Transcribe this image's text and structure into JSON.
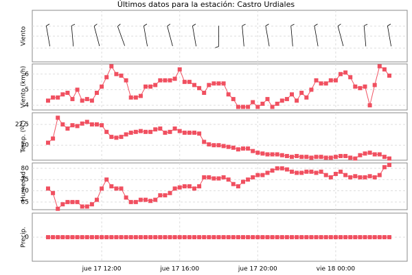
{
  "chart_data": {
    "type": "multi-panel",
    "title": "Últimos datos para la estación: Castro Urdiales",
    "categories": [
      null,
      null,
      null,
      null,
      null,
      null,
      null,
      null,
      null,
      null,
      null,
      "jue 17 12:00",
      null,
      null,
      null,
      null,
      null,
      null,
      null,
      null,
      null,
      null,
      null,
      null,
      null,
      null,
      null,
      "jue 17 16:00",
      null,
      null,
      null,
      null,
      null,
      null,
      null,
      null,
      null,
      null,
      null,
      null,
      null,
      null,
      null,
      "jue 17 20:00",
      null,
      null,
      null,
      null,
      null,
      null,
      null,
      null,
      null,
      null,
      null,
      null,
      null,
      null,
      null,
      "vie 18 00:00",
      null,
      null,
      null,
      null,
      null,
      null,
      null,
      null,
      null,
      null,
      null
    ],
    "grid": true,
    "panels": [
      {
        "type": "barb",
        "ylabel": "Viento",
        "color": "#000000",
        "values": [
          350,
          null,
          null,
          null,
          null,
          355,
          null,
          null,
          null,
          null,
          345,
          null,
          null,
          null,
          null,
          340,
          null,
          null,
          null,
          null,
          350,
          null,
          null,
          null,
          null,
          345,
          null,
          null,
          null,
          null,
          350,
          null,
          null,
          null,
          null,
          180,
          null,
          null,
          null,
          null,
          355,
          null,
          null,
          null,
          null,
          350,
          null,
          null,
          null,
          null,
          355,
          null,
          null,
          null,
          null,
          350,
          null,
          null,
          null,
          null,
          345,
          null,
          null,
          null,
          null,
          355,
          null,
          null,
          null,
          null,
          350
        ]
      },
      {
        "type": "line",
        "ylabel": "Viento (km/h)",
        "color": "#f05060",
        "ylim": [
          3.7,
          6.65
        ],
        "yticks": [
          4,
          5,
          6
        ],
        "values": [
          4.3,
          4.5,
          4.5,
          4.7,
          4.8,
          4.4,
          5.0,
          4.3,
          4.4,
          4.3,
          4.8,
          5.2,
          5.8,
          6.5,
          6.0,
          5.9,
          5.6,
          4.5,
          4.5,
          4.6,
          5.2,
          5.2,
          5.3,
          5.6,
          5.6,
          5.6,
          5.7,
          6.3,
          5.5,
          5.5,
          5.3,
          5.1,
          4.8,
          5.3,
          5.4,
          5.4,
          5.4,
          4.7,
          4.4,
          3.9,
          3.9,
          3.9,
          4.2,
          3.9,
          4.1,
          4.4,
          3.9,
          4.1,
          4.3,
          4.4,
          4.7,
          4.3,
          4.8,
          4.5,
          5.0,
          5.6,
          5.4,
          5.4,
          5.6,
          5.6,
          6.0,
          6.1,
          5.8,
          5.2,
          5.1,
          5.2,
          4.0,
          5.3,
          6.5,
          6.3,
          5.9
        ]
      },
      {
        "type": "line",
        "ylabel": "Temp. (ºC)",
        "color": "#f05060",
        "ylim": [
          18.2,
          23.9
        ],
        "yticks": [
          20,
          {
            "value": 22.5,
            "label": "22,5"
          }
        ],
        "values": [
          20.3,
          20.8,
          23.3,
          22.5,
          22.0,
          22.4,
          22.3,
          22.6,
          22.8,
          22.5,
          22.5,
          22.4,
          21.6,
          21.0,
          20.9,
          21.0,
          21.3,
          21.5,
          21.6,
          21.7,
          21.6,
          21.6,
          21.9,
          22.0,
          21.5,
          21.6,
          22.0,
          21.7,
          21.5,
          21.5,
          21.5,
          21.4,
          20.4,
          20.1,
          20.0,
          20.0,
          19.9,
          19.8,
          19.7,
          19.5,
          19.6,
          19.6,
          19.3,
          19.1,
          19.0,
          18.9,
          18.9,
          18.9,
          18.8,
          18.7,
          18.6,
          18.7,
          18.6,
          18.6,
          18.5,
          18.6,
          18.6,
          18.5,
          18.5,
          18.6,
          18.7,
          18.7,
          18.5,
          18.4,
          18.8,
          19.0,
          19.1,
          18.9,
          18.9,
          18.6,
          18.4
        ]
      },
      {
        "type": "line",
        "ylabel": "Humedad",
        "color": "#f05060",
        "ylim": [
          61.6,
          82.4
        ],
        "yticks": [
          65,
          70,
          75,
          80
        ],
        "values": [
          71,
          69,
          62,
          64,
          65,
          65,
          65,
          63,
          63,
          64,
          66,
          71,
          75,
          72,
          71,
          71,
          67,
          65,
          65,
          66,
          66,
          65.5,
          66,
          68,
          68,
          69,
          71,
          71.5,
          72,
          72,
          71,
          72,
          76,
          76,
          75.5,
          75.5,
          76,
          75,
          73,
          72,
          74,
          75,
          76,
          77,
          77,
          78,
          79,
          80,
          80,
          79.5,
          78.5,
          78,
          78,
          78.5,
          78.5,
          78,
          78.5,
          77,
          76,
          77.5,
          78.5,
          77,
          76,
          76.5,
          76,
          76,
          76.5,
          76,
          77,
          80.5,
          81.5
        ]
      },
      {
        "type": "line",
        "ylabel": "Precip.",
        "color": "#f05060",
        "ylim": [
          -1,
          1
        ],
        "yticks": [
          0
        ],
        "values": [
          0,
          0,
          0,
          0,
          0,
          0,
          0,
          0,
          0,
          0,
          0,
          0,
          0,
          0,
          0,
          0,
          0,
          0,
          0,
          0,
          0,
          0,
          0,
          0,
          0,
          0,
          0,
          0,
          0,
          0,
          0,
          0,
          0,
          0,
          0,
          0,
          0,
          0,
          0,
          0,
          0,
          0,
          0,
          0,
          0,
          0,
          0,
          0,
          0,
          0,
          0,
          0,
          0,
          0,
          0,
          0,
          0,
          0,
          0,
          0,
          0,
          0,
          0,
          0,
          0,
          0,
          0,
          0,
          0,
          0,
          0
        ]
      }
    ]
  }
}
